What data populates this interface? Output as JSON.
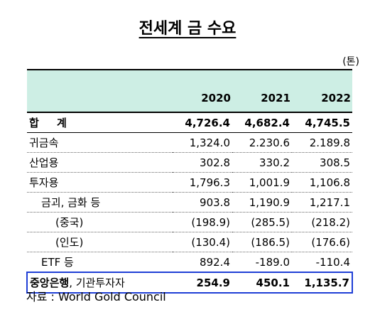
{
  "title": "전세계 금 수요",
  "unit": "(톤)",
  "columns": [
    "2020",
    "2021",
    "2022"
  ],
  "rows": [
    {
      "label": "합 계",
      "values": [
        "4,726.4",
        "4,682.4",
        "4,745.5"
      ]
    },
    {
      "label": "귀금속",
      "values": [
        "1,324.0",
        "2.230.6",
        "2.189.8"
      ]
    },
    {
      "label": "산업용",
      "values": [
        "302.8",
        "330.2",
        "308.5"
      ]
    },
    {
      "label": "투자용",
      "values": [
        "1,796.3",
        "1,001.9",
        "1,106.8"
      ]
    },
    {
      "label": "금괴, 금화 등",
      "values": [
        "903.8",
        "1,190.9",
        "1,217.1"
      ]
    },
    {
      "label": "(중국)",
      "values": [
        "(198.9)",
        "(285.5)",
        "(218.2)"
      ]
    },
    {
      "label": "(인도)",
      "values": [
        "(130.4)",
        "(186.5)",
        "(176.6)"
      ]
    },
    {
      "label": "ETF 등",
      "values": [
        "892.4",
        "-189.0",
        "-110.4"
      ]
    },
    {
      "label_bold": "중앙은행",
      "label_rest": ", 기관투자자",
      "values": [
        "254.9",
        "450.1",
        "1,135.7"
      ]
    }
  ],
  "source": "자료 : World Gold Council",
  "colors": {
    "header_bg": "#cdeee4",
    "highlight_border": "#1f3fd6"
  }
}
